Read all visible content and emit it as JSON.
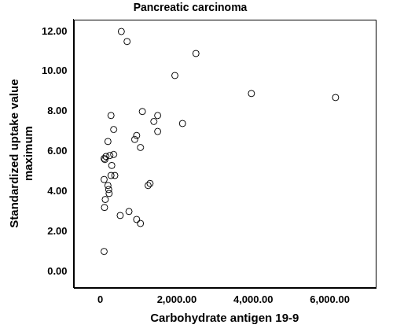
{
  "chart_data": {
    "type": "scatter",
    "title": "Pancreatic carcinoma",
    "x_label": "Carbohydrate antigen 19-9",
    "y_label": [
      "Standardized uptake value",
      "maximum"
    ],
    "color": "#000000",
    "marker": "circle",
    "grid": false,
    "x": [
      550,
      700,
      2500,
      1950,
      3950,
      6150,
      1100,
      1500,
      280,
      1400,
      2150,
      350,
      1500,
      950,
      900,
      200,
      1050,
      350,
      250,
      150,
      100,
      120,
      300,
      380,
      280,
      1300,
      1250,
      100,
      200,
      220,
      230,
      130,
      110,
      750,
      520,
      950,
      1050,
      100
    ],
    "values": [
      12.0,
      11.5,
      10.9,
      9.8,
      8.9,
      8.7,
      8.0,
      7.8,
      7.8,
      7.5,
      7.4,
      7.1,
      7.0,
      6.8,
      6.6,
      6.5,
      6.2,
      5.85,
      5.8,
      5.75,
      5.65,
      5.6,
      5.3,
      4.8,
      4.8,
      4.4,
      4.3,
      4.6,
      4.3,
      4.1,
      3.9,
      3.6,
      3.2,
      3.0,
      2.8,
      2.6,
      2.4,
      1.0
    ],
    "xlim": [
      -700,
      7200
    ],
    "xticks": [
      0,
      {
        "value": 2000,
        "label": "2,000.00"
      },
      {
        "value": 4000,
        "label": "4,000.00"
      },
      {
        "value": 6000,
        "label": "6,000.00"
      }
    ],
    "ylim": [
      -0.8,
      12.6
    ],
    "yticks": [
      {
        "value": 0,
        "label": "0.00"
      },
      {
        "value": 2,
        "label": "2.00"
      },
      {
        "value": 4,
        "label": "4.00"
      },
      {
        "value": 6,
        "label": "6.00"
      },
      {
        "value": 8,
        "label": "8.00"
      },
      {
        "value": 10,
        "label": "10.00"
      },
      {
        "value": 12,
        "label": "12.00"
      }
    ]
  }
}
